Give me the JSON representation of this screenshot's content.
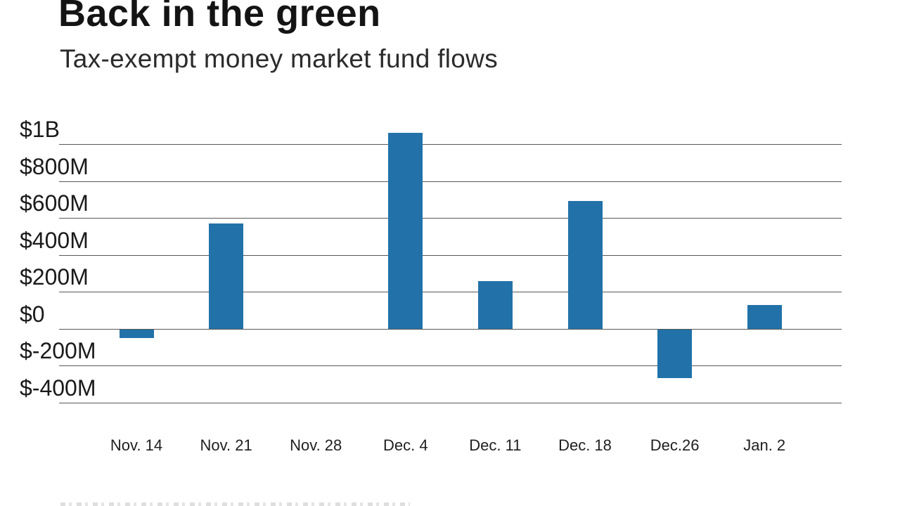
{
  "header": {
    "title": "Back in the green",
    "subtitle": "Tax-exempt money market fund flows"
  },
  "chart_data": {
    "type": "bar",
    "title": "Back in the green",
    "subtitle": "Tax-exempt money market fund flows",
    "categories": [
      "Nov. 14",
      "Nov. 21",
      "Nov. 28",
      "Dec. 4",
      "Dec. 11",
      "Dec. 18",
      "Dec.26",
      "Jan. 2"
    ],
    "values_millions": [
      -45,
      570,
      0,
      1060,
      260,
      690,
      -260,
      130
    ],
    "unit": "USD, millions",
    "y_tick_labels": [
      "$1B",
      "$800M",
      "$600M",
      "$400M",
      "$200M",
      "$0",
      "$-200M",
      "$-400M"
    ],
    "y_tick_values_millions": [
      1000,
      800,
      600,
      400,
      200,
      0,
      -200,
      -400
    ],
    "ylim_millions": [
      -500,
      1100
    ],
    "grid": true,
    "legend_position": "none",
    "bar_color": "#2272a9"
  },
  "colors": {
    "bar": "#2272a9",
    "gridline": "#585858",
    "title_text": "#141414",
    "subtitle_text": "#2b2b2b",
    "axis_text": "#1a1a1a",
    "background": "#ffffff"
  }
}
